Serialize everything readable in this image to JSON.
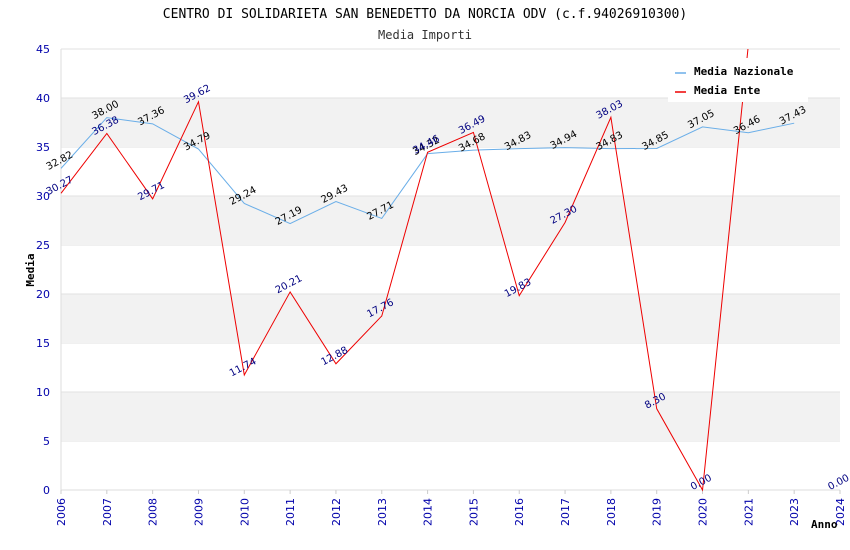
{
  "chart_data": {
    "type": "line",
    "title": "CENTRO DI SOLIDARIETA SAN BENEDETTO DA NORCIA ODV (c.f.94026910300)",
    "subtitle": "Media Importi",
    "xlabel": "Anno",
    "ylabel": "Media",
    "ylim": [
      0,
      45
    ],
    "yticks": [
      "0",
      "5",
      "10",
      "15",
      "20",
      "25",
      "30",
      "35",
      "40",
      "45"
    ],
    "categories": [
      "2006",
      "2007",
      "2008",
      "2009",
      "2010",
      "2011",
      "2012",
      "2013",
      "2014",
      "2015",
      "2016",
      "2017",
      "2018",
      "2019",
      "2020",
      "2021",
      "2023",
      "2024"
    ],
    "grid": "horizontal bands",
    "legend_position": "top-right",
    "series": [
      {
        "name": "Media Nazionale",
        "color": "#6aaee8",
        "values": [
          32.82,
          38.0,
          37.36,
          34.79,
          29.24,
          27.19,
          29.43,
          27.71,
          34.32,
          34.68,
          34.83,
          34.94,
          34.83,
          34.85,
          37.05,
          36.46,
          37.43,
          null
        ],
        "labels": [
          "32.82",
          "38.00",
          "37.36",
          "34.79",
          "29.24",
          "27.19",
          "29.43",
          "27.71",
          "34.32",
          "34.68",
          "34.83",
          "34.94",
          "34.83",
          "34.85",
          "37.05",
          "36.46",
          "37.43",
          ""
        ]
      },
      {
        "name": "Media Ente",
        "color": "#ee0000",
        "values": [
          30.27,
          36.38,
          29.71,
          39.62,
          11.74,
          20.21,
          12.88,
          17.76,
          34.46,
          36.49,
          19.83,
          27.3,
          38.03,
          8.3,
          0.0,
          45.4,
          null,
          0.0
        ],
        "labels": [
          "30.27",
          "36.38",
          "29.71",
          "39.62",
          "11.74",
          "20.21",
          "12.88",
          "17.76",
          "34.46",
          "36.49",
          "19.83",
          "27.30",
          "38.03",
          "8.30",
          "0.00",
          "",
          "",
          "0.00"
        ]
      }
    ]
  }
}
